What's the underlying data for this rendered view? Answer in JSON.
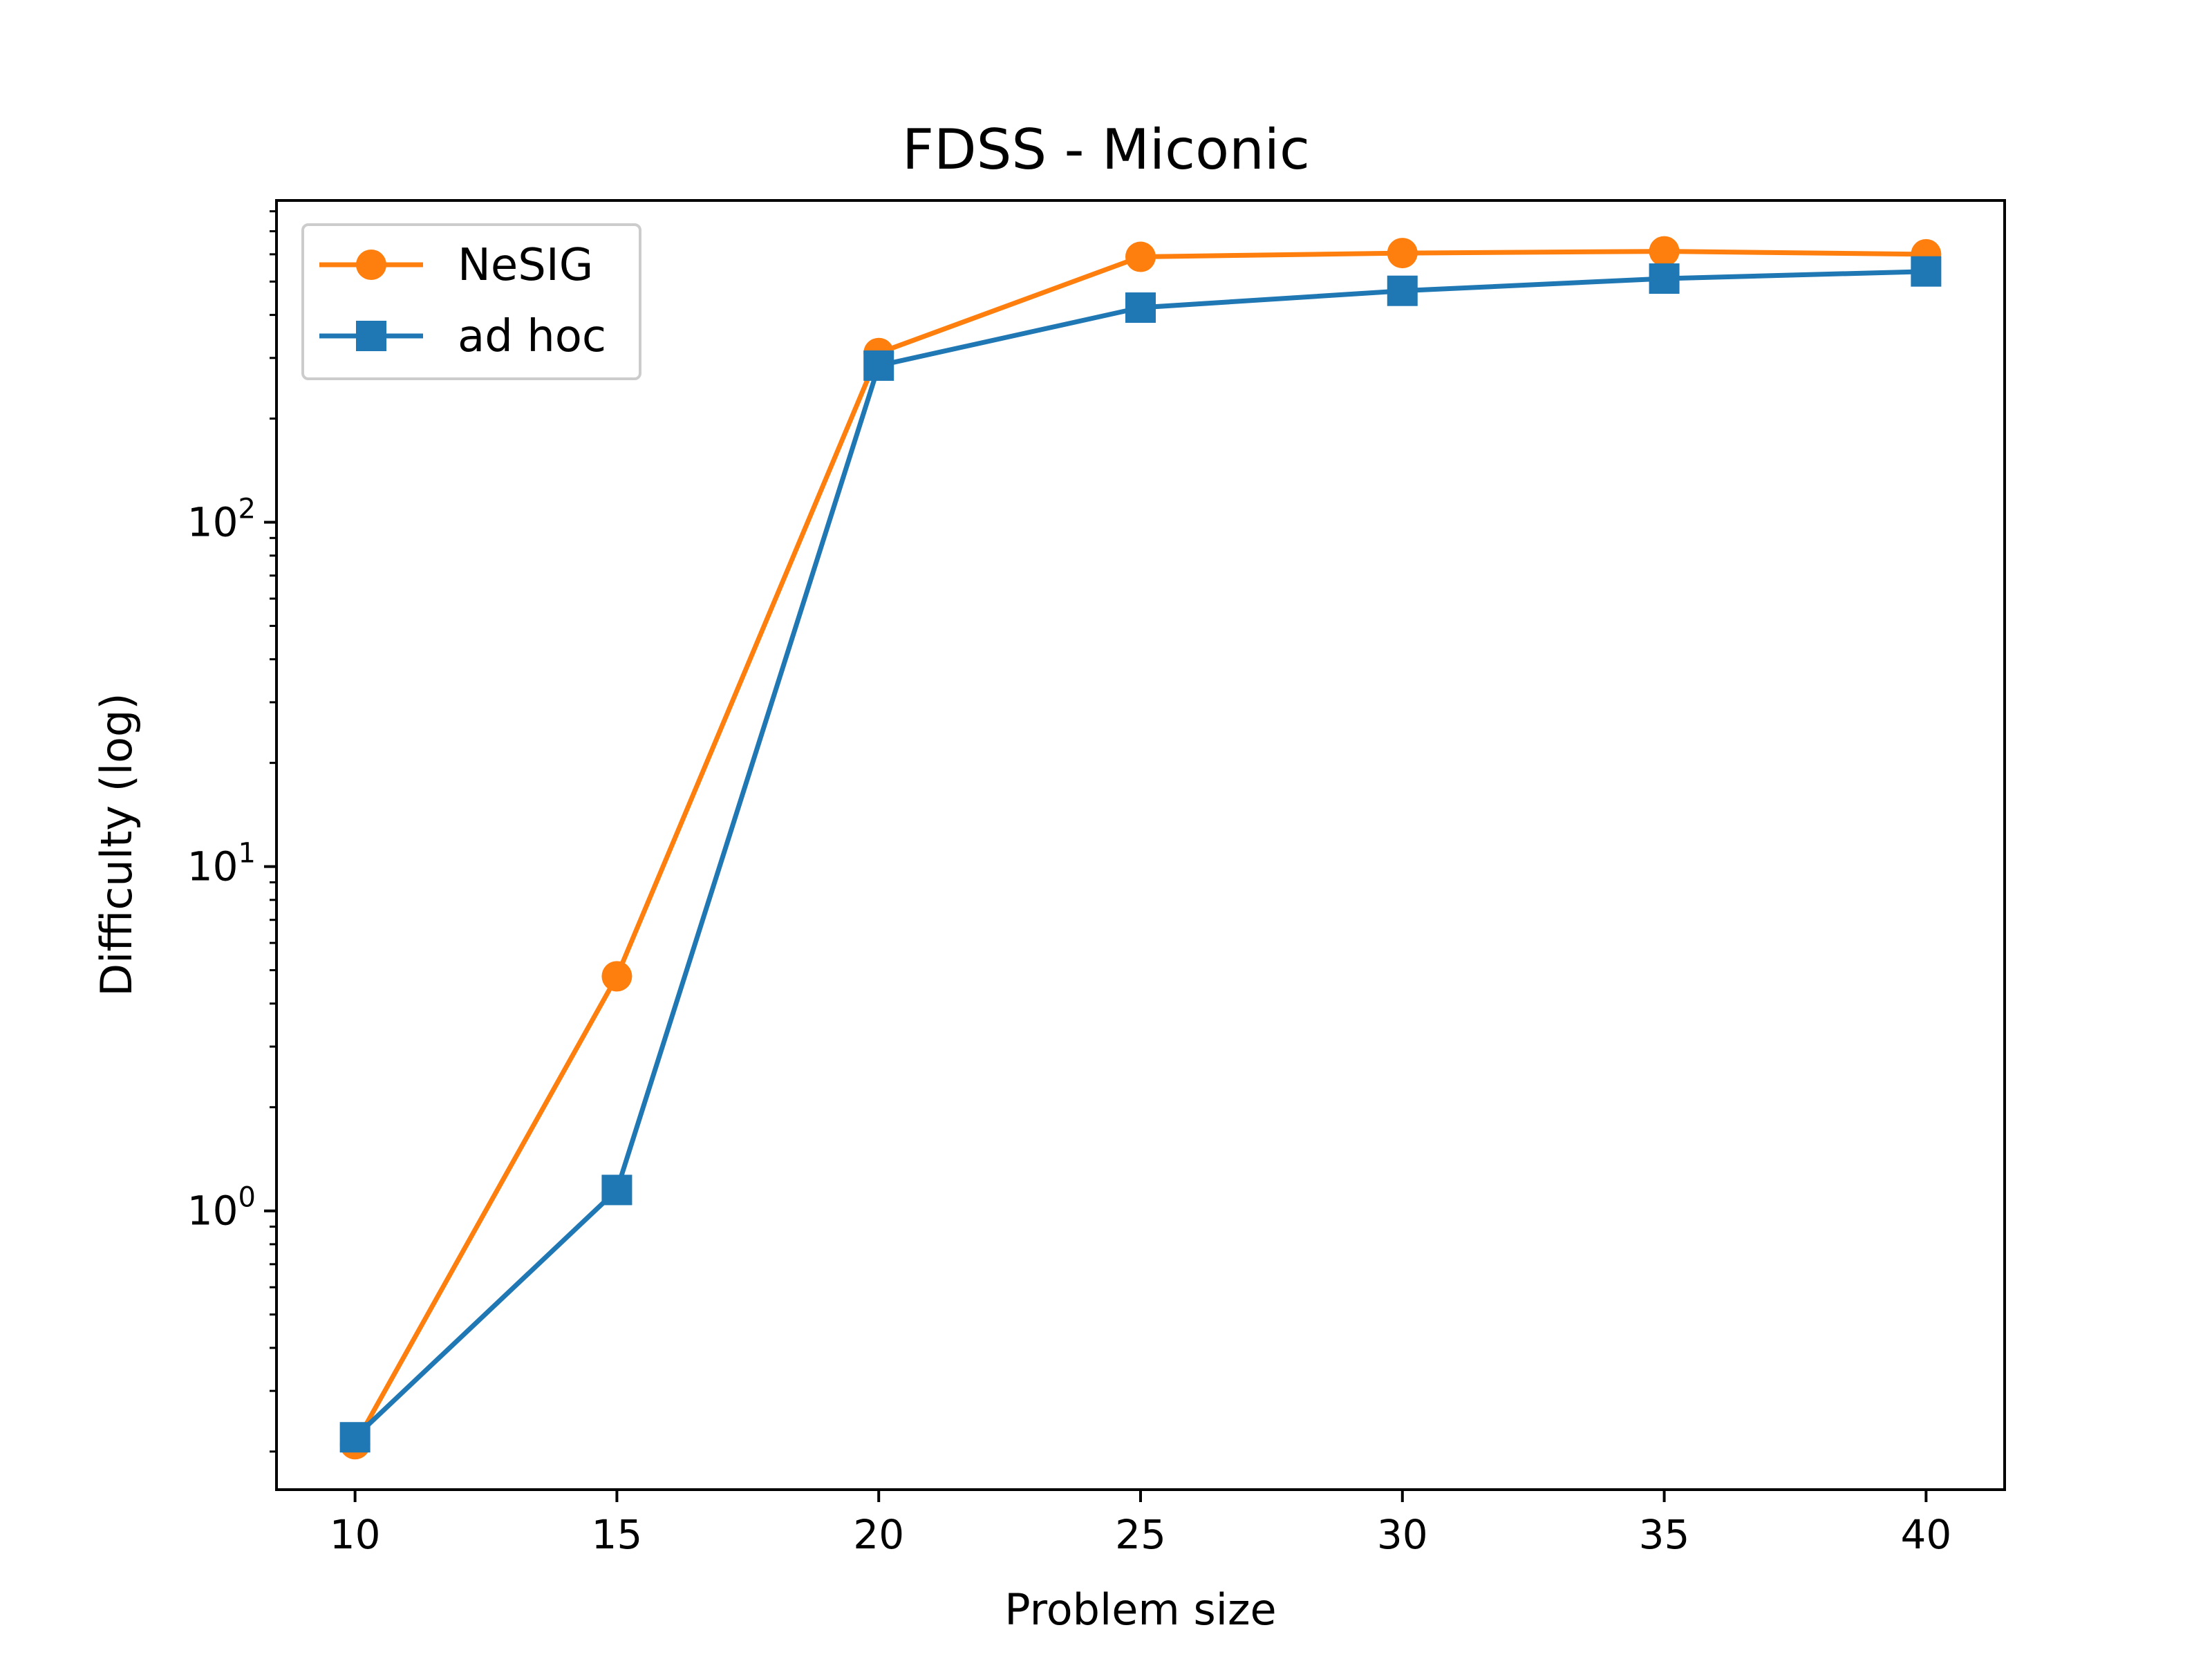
{
  "chart_data": {
    "type": "line",
    "title": "FDSS - Miconic",
    "xlabel": "Problem size",
    "ylabel": "Difficulty (log)",
    "yscale": "log",
    "xlim": [
      8.5,
      41.5
    ],
    "ylim": [
      0.155,
      860
    ],
    "xticks": [
      10,
      15,
      20,
      25,
      30,
      35,
      40
    ],
    "xtick_labels": [
      "10",
      "15",
      "20",
      "25",
      "30",
      "35",
      "40"
    ],
    "yticks": [
      {
        "value": 1,
        "base": "10",
        "exp": "0"
      },
      {
        "value": 10,
        "base": "10",
        "exp": "1"
      },
      {
        "value": 100,
        "base": "10",
        "exp": "2"
      }
    ],
    "grid": false,
    "legend_position": "upper left",
    "x": [
      10,
      15,
      20,
      25,
      30,
      35,
      40
    ],
    "series": [
      {
        "name": "NeSIG",
        "color": "#ff7f0e",
        "marker": "circle",
        "values": [
          0.21,
          4.8,
          310,
          590,
          605,
          612,
          600
        ]
      },
      {
        "name": "ad hoc",
        "color": "#1f77b4",
        "marker": "square",
        "values": [
          0.22,
          1.15,
          285,
          420,
          470,
          510,
          535
        ]
      }
    ]
  }
}
